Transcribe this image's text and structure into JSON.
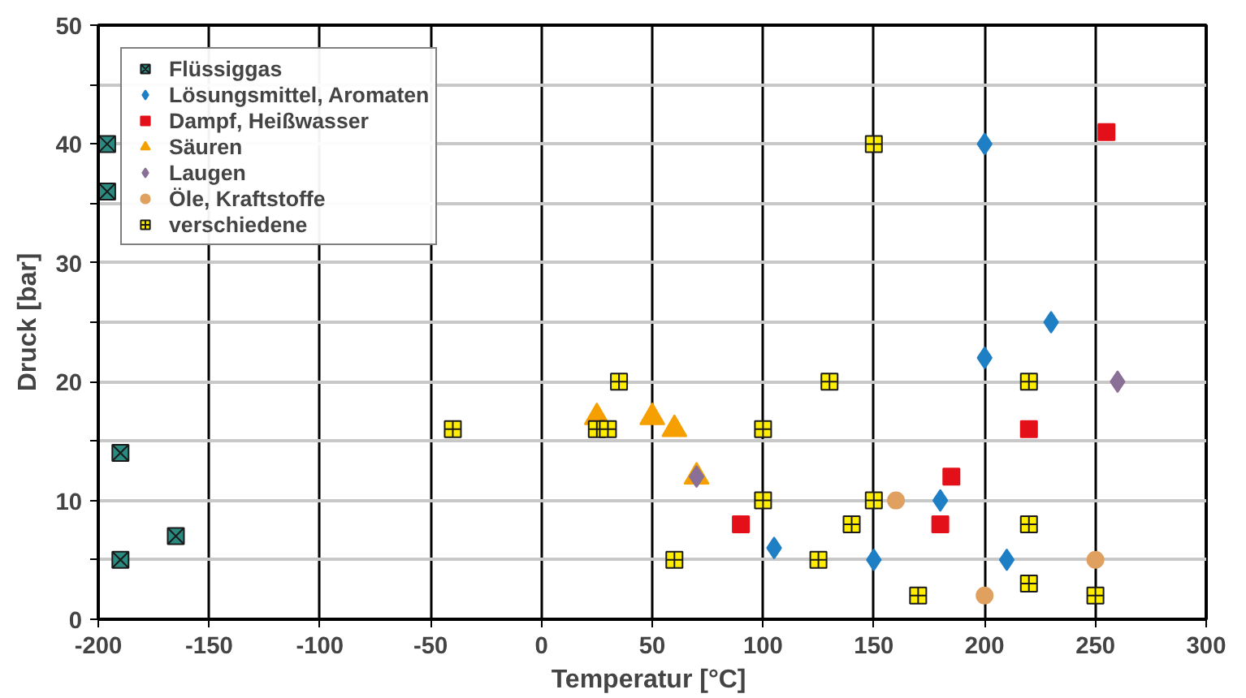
{
  "chart_data": {
    "type": "scatter",
    "xlabel": "Temperatur  [°C]",
    "ylabel": "Druck [bar]",
    "xlim": [
      -200,
      300
    ],
    "ylim": [
      0,
      50
    ],
    "xticks": [
      -200,
      -150,
      -100,
      -50,
      0,
      50,
      100,
      150,
      200,
      250,
      300
    ],
    "yticks": [
      0,
      {
        "value": 5,
        "label": null
      },
      10,
      {
        "value": 15,
        "label": null
      },
      20,
      {
        "value": 25,
        "label": null
      },
      30,
      {
        "value": 35,
        "label": null
      },
      40,
      {
        "value": 45,
        "label": null
      },
      50
    ],
    "grid": true,
    "legend": "top left",
    "series": [
      {
        "name": "Flüssiggas",
        "color": "#2a8a80",
        "marker": "cross",
        "x": [
          -196,
          -196,
          -190,
          -190,
          -165
        ],
        "values": [
          40,
          36,
          14,
          5,
          7
        ]
      },
      {
        "name": "Lösungsmittel, Aromaten",
        "color": "#1f7fc4",
        "marker": "diamond",
        "x": [
          200,
          230,
          200,
          180,
          105,
          150,
          210
        ],
        "values": [
          40,
          25,
          22,
          10,
          6,
          5,
          5
        ]
      },
      {
        "name": "Dampf, Heißwasser",
        "color": "#e3101a",
        "marker": "square",
        "x": [
          255,
          220,
          185,
          180,
          90
        ],
        "values": [
          41,
          16,
          12,
          8,
          8
        ]
      },
      {
        "name": "Säuren",
        "color": "#f5a000",
        "marker": "triangle",
        "x": [
          25,
          50,
          60,
          70
        ],
        "values": [
          17,
          17,
          16,
          12
        ]
      },
      {
        "name": "Laugen",
        "color": "#8a6f96",
        "marker": "diamond",
        "x": [
          70,
          260
        ],
        "values": [
          12,
          20
        ]
      },
      {
        "name": "Öle, Kraftstoffe",
        "color": "#e0a060",
        "marker": "circle",
        "x": [
          160,
          250,
          200
        ],
        "values": [
          10,
          5,
          2
        ]
      },
      {
        "name": "verschiedene",
        "color": "#ffee00",
        "marker": "cross",
        "x": [
          -40,
          25,
          30,
          35,
          60,
          100,
          100,
          125,
          130,
          140,
          150,
          150,
          170,
          220,
          220,
          220,
          250
        ],
        "values": [
          16,
          16,
          16,
          20,
          5,
          16,
          10,
          5,
          20,
          8,
          40,
          10,
          2,
          20,
          8,
          3,
          2
        ]
      }
    ]
  }
}
